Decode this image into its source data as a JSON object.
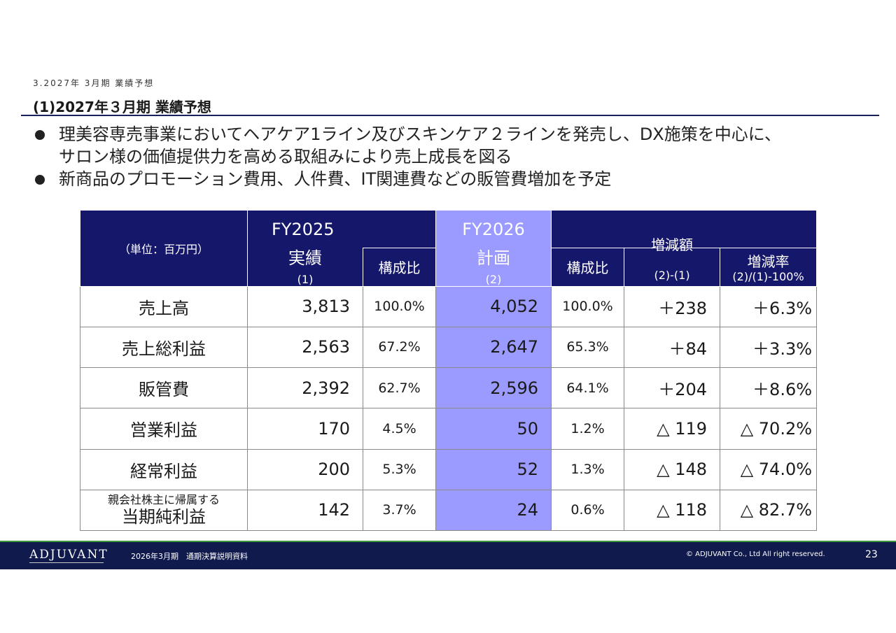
{
  "breadcrumb": "3.2027年 3月期 業績予想",
  "title": "(1)2027年３月期 業績予想",
  "bullets": [
    {
      "lines": [
        "理美容専売事業においてヘアケア1ライン及びスキンケア２ラインを発売し、DX施策を中心に、",
        "サロン様の価値提供力を高める取組みにより売上成長を図る"
      ]
    },
    {
      "lines": [
        "新商品のプロモーション費用、人件費、IT関連費などの販管費増加を予定"
      ]
    }
  ],
  "table": {
    "unit": "（単位：百万円）",
    "fy2025": {
      "year": "FY2025",
      "label": "実績",
      "ref": "(1)"
    },
    "fy2026": {
      "year": "FY2026",
      "label": "計画",
      "ref": "(2)"
    },
    "ratio_label": "構成比",
    "change_amount": {
      "label": "増減額",
      "formula": "(2)-(1)"
    },
    "change_rate": {
      "label": "増減率",
      "formula": "(2)/(1)-100%"
    },
    "rows": [
      {
        "sub": "",
        "label": "売上高",
        "a": "3,813",
        "ar": "100.0%",
        "b": "4,052",
        "br": "100.0%",
        "d": "＋238",
        "r": "＋6.3%"
      },
      {
        "sub": "",
        "label": "売上総利益",
        "a": "2,563",
        "ar": "67.2%",
        "b": "2,647",
        "br": "65.3%",
        "d": "＋84",
        "r": "＋3.3%"
      },
      {
        "sub": "",
        "label": "販管費",
        "a": "2,392",
        "ar": "62.7%",
        "b": "2,596",
        "br": "64.1%",
        "d": "＋204",
        "r": "＋8.6%"
      },
      {
        "sub": "",
        "label": "営業利益",
        "a": "170",
        "ar": "4.5%",
        "b": "50",
        "br": "1.2%",
        "d": "△ 119",
        "r": "△ 70.2%"
      },
      {
        "sub": "",
        "label": "経常利益",
        "a": "200",
        "ar": "5.3%",
        "b": "52",
        "br": "1.3%",
        "d": "△ 148",
        "r": "△ 74.0%"
      },
      {
        "sub": "親会社株主に帰属する",
        "label": "当期純利益",
        "a": "142",
        "ar": "3.7%",
        "b": "24",
        "br": "0.6%",
        "d": "△ 118",
        "r": "△ 82.7%"
      }
    ]
  },
  "footer": {
    "logo": "ADJUVANT",
    "doc": "2026年3月期　通期決算説明資料",
    "copyright": "© ADJUVANT Co., Ltd All right reserved.",
    "page": "23"
  },
  "colors": {
    "navy": "#15176a",
    "highlight": "#9b9bff",
    "footer": "#111a4c",
    "accent_line": "#3d9a3d"
  }
}
